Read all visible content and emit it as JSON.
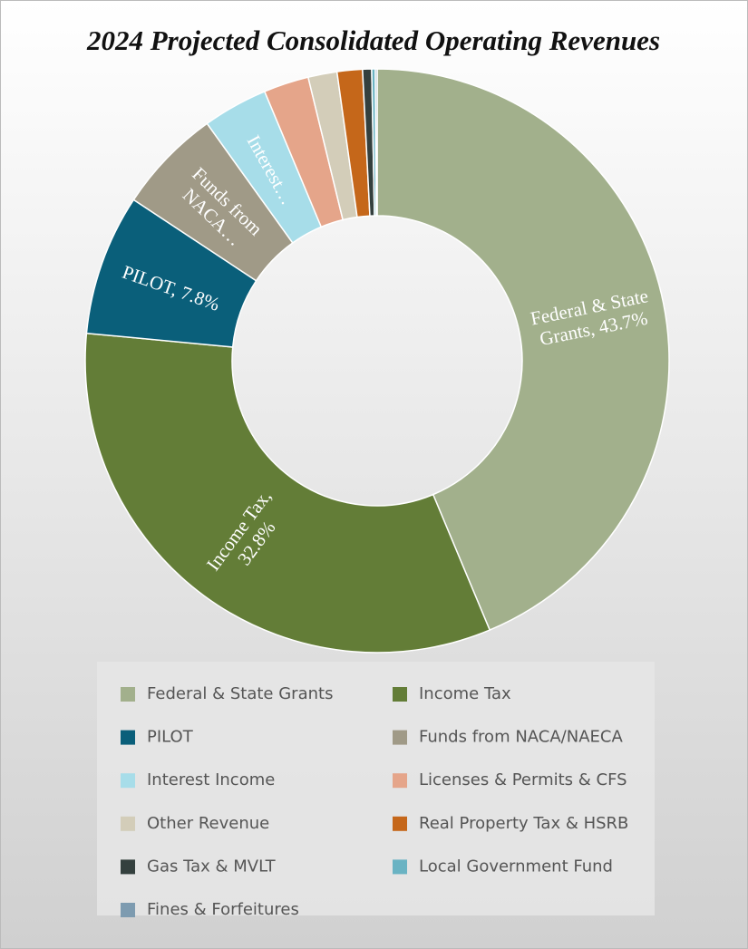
{
  "chart_data": {
    "type": "donut",
    "title": "2024 Projected Consolidated Operating Revenues",
    "categories": [
      "Federal & State Grants",
      "Income Tax",
      "PILOT",
      "Funds from NACA/NAECA",
      "Interest Income",
      "Licenses & Permits & CFS",
      "Other Revenue",
      "Real Property Tax & HSRB",
      "Gas Tax & MVLT",
      "Local Government Fund",
      "Fines & Forfeitures"
    ],
    "values": [
      43.7,
      32.8,
      7.8,
      5.8,
      3.6,
      2.5,
      1.6,
      1.4,
      0.5,
      0.2,
      0.1
    ],
    "value_labels": [
      "Federal & State Grants, 43.7%",
      "Income Tax, 32.8%",
      "PILOT, 7.8%",
      "Funds from NACA…",
      "Interest…",
      null,
      null,
      null,
      null,
      null,
      null
    ],
    "colors": [
      "#a2b08c",
      "#637d37",
      "#0a5f7a",
      "#a09a87",
      "#a7dde9",
      "#e5a58a",
      "#d3cdb9",
      "#c5671a",
      "#34403e",
      "#6ab3c3",
      "#7d9bb0"
    ],
    "legend": "bottom"
  }
}
